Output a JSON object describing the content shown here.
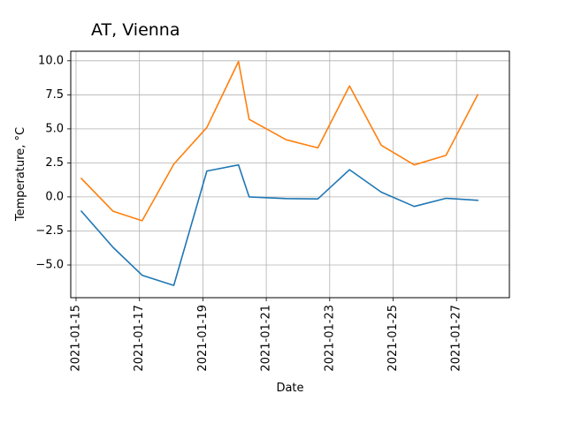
{
  "chart_data": {
    "type": "line",
    "title": "AT, Vienna",
    "xlabel": "Date",
    "ylabel": "Temperature, °C",
    "x_type": "date",
    "xlim": [
      "2021-01-14T20:00",
      "2021-01-28T16:00"
    ],
    "ylim": [
      -7.4,
      10.7
    ],
    "grid": true,
    "legend": "none",
    "x_ticks": [
      "2021-01-15",
      "2021-01-17",
      "2021-01-19",
      "2021-01-21",
      "2021-01-23",
      "2021-01-25",
      "2021-01-27"
    ],
    "y_ticks": [
      {
        "value": 10.0,
        "label": "10.0"
      },
      {
        "value": 7.5,
        "label": "7.5"
      },
      {
        "value": 5.0,
        "label": "5.0"
      },
      {
        "value": 2.5,
        "label": "2.5"
      },
      {
        "value": 0.0,
        "label": "0.0"
      },
      {
        "value": -2.5,
        "label": "−2.5"
      },
      {
        "value": -5.0,
        "label": "−5.0"
      }
    ],
    "series": [
      {
        "color": "#1f77b4",
        "points": [
          {
            "x": "2021-01-15T04:00",
            "y": -1.05
          },
          {
            "x": "2021-01-16T04:00",
            "y": -3.7
          },
          {
            "x": "2021-01-17T02:00",
            "y": -5.75
          },
          {
            "x": "2021-01-18T02:00",
            "y": -6.5
          },
          {
            "x": "2021-01-19T03:00",
            "y": 1.9
          },
          {
            "x": "2021-01-20T03:00",
            "y": 2.35
          },
          {
            "x": "2021-01-20T11:00",
            "y": 0.0
          },
          {
            "x": "2021-01-21T15:00",
            "y": -0.12
          },
          {
            "x": "2021-01-22T15:00",
            "y": -0.15
          },
          {
            "x": "2021-01-23T15:00",
            "y": 2.0
          },
          {
            "x": "2021-01-24T15:00",
            "y": 0.35
          },
          {
            "x": "2021-01-25T16:00",
            "y": -0.7
          },
          {
            "x": "2021-01-26T16:00",
            "y": -0.1
          },
          {
            "x": "2021-01-27T16:00",
            "y": -0.25
          }
        ]
      },
      {
        "color": "#ff7f0e",
        "points": [
          {
            "x": "2021-01-15T04:00",
            "y": 1.35
          },
          {
            "x": "2021-01-16T04:00",
            "y": -1.05
          },
          {
            "x": "2021-01-17T02:00",
            "y": -1.75
          },
          {
            "x": "2021-01-18T02:00",
            "y": 2.4
          },
          {
            "x": "2021-01-19T03:00",
            "y": 5.1
          },
          {
            "x": "2021-01-20T03:00",
            "y": 9.95
          },
          {
            "x": "2021-01-20T11:00",
            "y": 5.7
          },
          {
            "x": "2021-01-21T15:00",
            "y": 4.2
          },
          {
            "x": "2021-01-22T15:00",
            "y": 3.6
          },
          {
            "x": "2021-01-23T15:00",
            "y": 8.15
          },
          {
            "x": "2021-01-24T15:00",
            "y": 3.8
          },
          {
            "x": "2021-01-25T16:00",
            "y": 2.35
          },
          {
            "x": "2021-01-26T16:00",
            "y": 3.05
          },
          {
            "x": "2021-01-27T16:00",
            "y": 7.5
          }
        ]
      }
    ]
  }
}
